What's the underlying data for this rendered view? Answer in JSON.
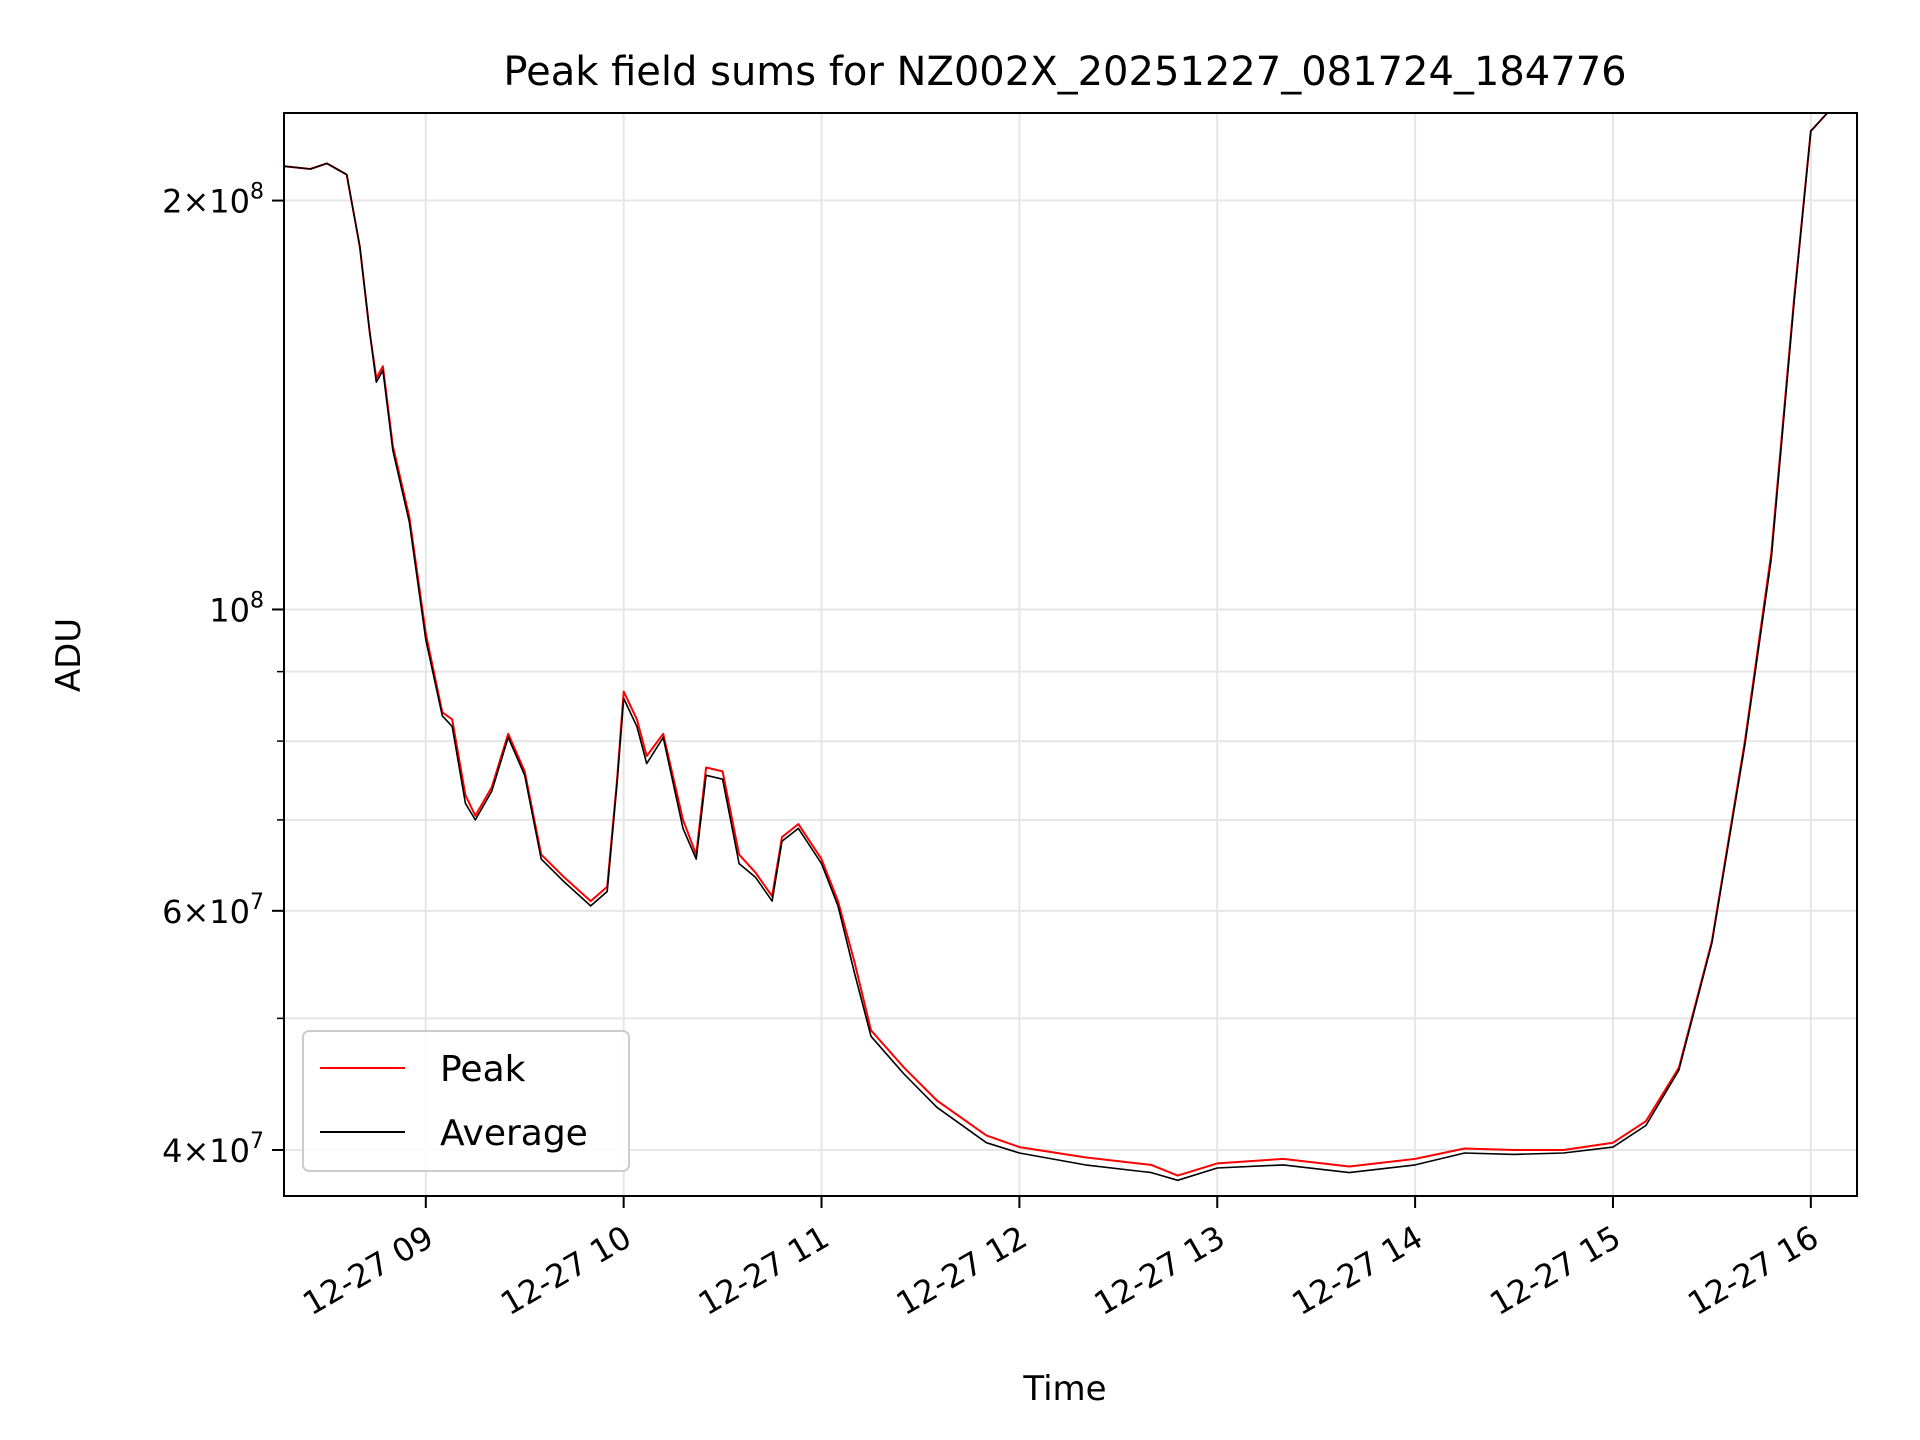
{
  "chart_data": {
    "type": "line",
    "title": "Peak field sums for NZ002X_20251227_081724_184776",
    "xlabel": "Time",
    "ylabel": "ADU",
    "y_scale": "log",
    "x_range": [
      "2025-12-27 08:17",
      "2025-12-27 16:14"
    ],
    "y_range": [
      37000000,
      232000000
    ],
    "grid": true,
    "legend_placement": "lower-left",
    "x_ticks": [
      {
        "value": "2025-12-27 09:00",
        "label": "12-27 09"
      },
      {
        "value": "2025-12-27 10:00",
        "label": "12-27 10"
      },
      {
        "value": "2025-12-27 11:00",
        "label": "12-27 11"
      },
      {
        "value": "2025-12-27 12:00",
        "label": "12-27 12"
      },
      {
        "value": "2025-12-27 13:00",
        "label": "12-27 13"
      },
      {
        "value": "2025-12-27 14:00",
        "label": "12-27 14"
      },
      {
        "value": "2025-12-27 15:00",
        "label": "12-27 15"
      },
      {
        "value": "2025-12-27 16:00",
        "label": "12-27 16"
      }
    ],
    "y_ticks": [
      {
        "value": 40000000,
        "mantissa": "4",
        "exponent": "7"
      },
      {
        "value": 60000000,
        "mantissa": "6",
        "exponent": "7"
      },
      {
        "value": 100000000,
        "mantissa": "",
        "exponent": "8"
      },
      {
        "value": 200000000,
        "mantissa": "2",
        "exponent": "8"
      }
    ],
    "y_minor_ticks": [
      50000000,
      70000000,
      80000000,
      90000000
    ],
    "series": [
      {
        "name": "Peak",
        "color": "#ff0000",
        "points": [
          [
            "2025-12-27 08:17",
            212000000
          ],
          [
            "2025-12-27 08:25",
            211000000
          ],
          [
            "2025-12-27 08:30",
            213000000
          ],
          [
            "2025-12-27 08:33",
            211000000
          ],
          [
            "2025-12-27 08:36",
            209000000
          ],
          [
            "2025-12-27 08:40",
            185000000
          ],
          [
            "2025-12-27 08:43",
            160000000
          ],
          [
            "2025-12-27 08:45",
            148000000
          ],
          [
            "2025-12-27 08:47",
            151000000
          ],
          [
            "2025-12-27 08:50",
            132000000
          ],
          [
            "2025-12-27 08:55",
            117000000
          ],
          [
            "2025-12-27 09:00",
            96000000
          ],
          [
            "2025-12-27 09:05",
            84000000
          ],
          [
            "2025-12-27 09:08",
            83000000
          ],
          [
            "2025-12-27 09:12",
            73000000
          ],
          [
            "2025-12-27 09:15",
            70500000
          ],
          [
            "2025-12-27 09:20",
            74000000
          ],
          [
            "2025-12-27 09:25",
            81000000
          ],
          [
            "2025-12-27 09:30",
            76000000
          ],
          [
            "2025-12-27 09:35",
            66000000
          ],
          [
            "2025-12-27 09:42",
            63500000
          ],
          [
            "2025-12-27 09:50",
            61000000
          ],
          [
            "2025-12-27 09:55",
            62500000
          ],
          [
            "2025-12-27 09:58",
            75000000
          ],
          [
            "2025-12-27 10:00",
            87000000
          ],
          [
            "2025-12-27 10:04",
            83000000
          ],
          [
            "2025-12-27 10:07",
            78000000
          ],
          [
            "2025-12-27 10:12",
            81000000
          ],
          [
            "2025-12-27 10:18",
            70000000
          ],
          [
            "2025-12-27 10:22",
            66000000
          ],
          [
            "2025-12-27 10:25",
            76500000
          ],
          [
            "2025-12-27 10:30",
            76000000
          ],
          [
            "2025-12-27 10:35",
            66000000
          ],
          [
            "2025-12-27 10:40",
            64000000
          ],
          [
            "2025-12-27 10:45",
            61500000
          ],
          [
            "2025-12-27 10:48",
            68000000
          ],
          [
            "2025-12-27 10:53",
            69500000
          ],
          [
            "2025-12-27 11:00",
            65500000
          ],
          [
            "2025-12-27 11:05",
            61000000
          ],
          [
            "2025-12-27 11:10",
            55000000
          ],
          [
            "2025-12-27 11:15",
            49000000
          ],
          [
            "2025-12-27 11:25",
            46000000
          ],
          [
            "2025-12-27 11:35",
            43500000
          ],
          [
            "2025-12-27 11:50",
            41000000
          ],
          [
            "2025-12-27 12:00",
            40200000
          ],
          [
            "2025-12-27 12:20",
            39500000
          ],
          [
            "2025-12-27 12:40",
            39000000
          ],
          [
            "2025-12-27 12:48",
            38300000
          ],
          [
            "2025-12-27 13:00",
            39100000
          ],
          [
            "2025-12-27 13:20",
            39400000
          ],
          [
            "2025-12-27 13:40",
            38900000
          ],
          [
            "2025-12-27 14:00",
            39400000
          ],
          [
            "2025-12-27 14:15",
            40100000
          ],
          [
            "2025-12-27 14:30",
            40000000
          ],
          [
            "2025-12-27 14:45",
            40000000
          ],
          [
            "2025-12-27 15:00",
            40500000
          ],
          [
            "2025-12-27 15:10",
            42000000
          ],
          [
            "2025-12-27 15:20",
            46000000
          ],
          [
            "2025-12-27 15:30",
            57000000
          ],
          [
            "2025-12-27 15:40",
            80000000
          ],
          [
            "2025-12-27 15:48",
            110000000
          ],
          [
            "2025-12-27 15:55",
            170000000
          ],
          [
            "2025-12-27 16:00",
            225000000
          ],
          [
            "2025-12-27 16:05",
            232000000
          ],
          [
            "2025-12-27 16:14",
            232000000
          ]
        ]
      },
      {
        "name": "Average",
        "color": "#000000",
        "points": [
          [
            "2025-12-27 08:17",
            212000000
          ],
          [
            "2025-12-27 08:25",
            211000000
          ],
          [
            "2025-12-27 08:30",
            213000000
          ],
          [
            "2025-12-27 08:33",
            211000000
          ],
          [
            "2025-12-27 08:36",
            209000000
          ],
          [
            "2025-12-27 08:40",
            185000000
          ],
          [
            "2025-12-27 08:43",
            160000000
          ],
          [
            "2025-12-27 08:45",
            147000000
          ],
          [
            "2025-12-27 08:47",
            150000000
          ],
          [
            "2025-12-27 08:50",
            131000000
          ],
          [
            "2025-12-27 08:55",
            116000000
          ],
          [
            "2025-12-27 09:00",
            95000000
          ],
          [
            "2025-12-27 09:05",
            83500000
          ],
          [
            "2025-12-27 09:08",
            82000000
          ],
          [
            "2025-12-27 09:12",
            72000000
          ],
          [
            "2025-12-27 09:15",
            70000000
          ],
          [
            "2025-12-27 09:20",
            73500000
          ],
          [
            "2025-12-27 09:25",
            80500000
          ],
          [
            "2025-12-27 09:30",
            75500000
          ],
          [
            "2025-12-27 09:35",
            65500000
          ],
          [
            "2025-12-27 09:42",
            63000000
          ],
          [
            "2025-12-27 09:50",
            60500000
          ],
          [
            "2025-12-27 09:55",
            62000000
          ],
          [
            "2025-12-27 09:58",
            74500000
          ],
          [
            "2025-12-27 10:00",
            86000000
          ],
          [
            "2025-12-27 10:04",
            82000000
          ],
          [
            "2025-12-27 10:07",
            77000000
          ],
          [
            "2025-12-27 10:12",
            80500000
          ],
          [
            "2025-12-27 10:18",
            69000000
          ],
          [
            "2025-12-27 10:22",
            65500000
          ],
          [
            "2025-12-27 10:25",
            75500000
          ],
          [
            "2025-12-27 10:30",
            75000000
          ],
          [
            "2025-12-27 10:35",
            65000000
          ],
          [
            "2025-12-27 10:40",
            63500000
          ],
          [
            "2025-12-27 10:45",
            61000000
          ],
          [
            "2025-12-27 10:48",
            67500000
          ],
          [
            "2025-12-27 10:53",
            69000000
          ],
          [
            "2025-12-27 11:00",
            65000000
          ],
          [
            "2025-12-27 11:05",
            60500000
          ],
          [
            "2025-12-27 11:10",
            54000000
          ],
          [
            "2025-12-27 11:15",
            48500000
          ],
          [
            "2025-12-27 11:25",
            45500000
          ],
          [
            "2025-12-27 11:35",
            43000000
          ],
          [
            "2025-12-27 11:50",
            40500000
          ],
          [
            "2025-12-27 12:00",
            39800000
          ],
          [
            "2025-12-27 12:20",
            39000000
          ],
          [
            "2025-12-27 12:40",
            38500000
          ],
          [
            "2025-12-27 12:48",
            38000000
          ],
          [
            "2025-12-27 13:00",
            38800000
          ],
          [
            "2025-12-27 13:20",
            39000000
          ],
          [
            "2025-12-27 13:40",
            38500000
          ],
          [
            "2025-12-27 14:00",
            39000000
          ],
          [
            "2025-12-27 14:15",
            39800000
          ],
          [
            "2025-12-27 14:30",
            39700000
          ],
          [
            "2025-12-27 14:45",
            39800000
          ],
          [
            "2025-12-27 15:00",
            40200000
          ],
          [
            "2025-12-27 15:10",
            41700000
          ],
          [
            "2025-12-27 15:20",
            45800000
          ],
          [
            "2025-12-27 15:30",
            56800000
          ],
          [
            "2025-12-27 15:40",
            79500000
          ],
          [
            "2025-12-27 15:48",
            109000000
          ],
          [
            "2025-12-27 15:55",
            169000000
          ],
          [
            "2025-12-27 16:00",
            225000000
          ],
          [
            "2025-12-27 16:05",
            232000000
          ],
          [
            "2025-12-27 16:14",
            232000000
          ]
        ]
      }
    ]
  }
}
